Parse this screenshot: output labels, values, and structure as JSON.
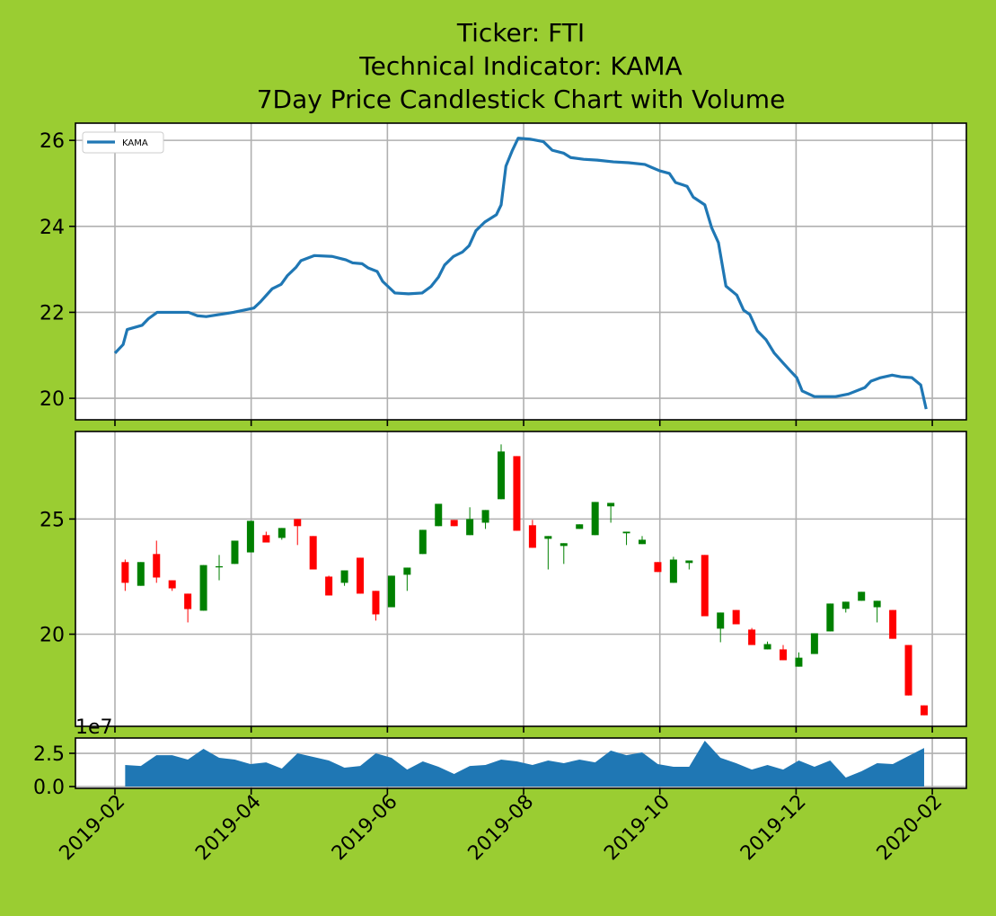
{
  "chart_data": [
    {
      "type": "line",
      "title": [
        "Ticker: FTI",
        "Technical Indicator: KAMA",
        "7Day Price Candlestick Chart with Volume"
      ],
      "x": [
        1.0,
        1.12,
        1.18,
        1.4,
        1.49,
        1.62,
        2.08,
        2.21,
        2.34,
        2.54,
        2.74,
        3.04,
        3.14,
        3.31,
        3.44,
        3.53,
        3.66,
        3.73,
        3.93,
        4.19,
        4.39,
        4.49,
        4.63,
        4.72,
        4.85,
        4.93,
        5.01,
        5.11,
        5.31,
        5.51,
        5.64,
        5.75,
        5.84,
        5.97,
        6.1,
        6.2,
        6.3,
        6.43,
        6.6,
        6.67,
        6.74,
        6.83,
        6.92,
        7.09,
        7.29,
        7.42,
        7.59,
        7.69,
        7.88,
        8.08,
        8.32,
        8.54,
        8.78,
        8.88,
        9.0,
        9.14,
        9.23,
        9.4,
        9.49,
        9.66,
        9.76,
        9.86,
        9.97,
        10.13,
        10.23,
        10.32,
        10.43,
        10.56,
        10.68,
        10.81,
        10.92,
        11.01,
        11.09,
        11.27,
        11.58,
        11.77,
        12.01,
        12.1,
        12.24,
        12.41,
        12.54,
        12.7,
        12.83,
        12.91
      ],
      "series": [
        {
          "name": "KAMA",
          "color": "#1f77b4",
          "values": [
            21.05,
            21.25,
            21.6,
            21.7,
            21.85,
            22.0,
            22.0,
            21.92,
            21.9,
            21.95,
            22.0,
            22.1,
            22.25,
            22.55,
            22.65,
            22.85,
            23.05,
            23.2,
            23.32,
            23.3,
            23.22,
            23.15,
            23.13,
            23.03,
            22.95,
            22.72,
            22.6,
            22.45,
            22.43,
            22.45,
            22.6,
            22.82,
            23.1,
            23.3,
            23.4,
            23.55,
            23.9,
            24.1,
            24.27,
            24.5,
            25.4,
            25.75,
            26.05,
            26.03,
            25.97,
            25.77,
            25.7,
            25.6,
            25.56,
            25.54,
            25.5,
            25.48,
            25.44,
            25.37,
            25.29,
            25.23,
            25.02,
            24.93,
            24.68,
            24.5,
            23.97,
            23.62,
            22.61,
            22.4,
            22.05,
            21.95,
            21.57,
            21.36,
            21.05,
            20.82,
            20.63,
            20.48,
            20.17,
            20.04,
            20.04,
            20.1,
            20.25,
            20.4,
            20.48,
            20.54,
            20.5,
            20.48,
            20.31,
            19.75
          ]
        }
      ],
      "xlim": [
        0.42,
        13.5
      ],
      "xticks": [
        1,
        3,
        5,
        7,
        9,
        11,
        13
      ],
      "ylim": [
        19.5,
        26.4
      ],
      "yticks": [
        20,
        22,
        24,
        26
      ],
      "grid": true,
      "legend": "upper left"
    },
    {
      "type": "candlestick",
      "x": [
        1.15,
        1.38,
        1.61,
        1.84,
        2.07,
        2.3,
        2.53,
        2.76,
        2.99,
        3.22,
        3.45,
        3.68,
        3.91,
        4.14,
        4.37,
        4.6,
        4.83,
        5.06,
        5.29,
        5.52,
        5.75,
        5.98,
        6.21,
        6.44,
        6.67,
        6.9,
        7.13,
        7.36,
        7.59,
        7.82,
        8.05,
        8.28,
        8.51,
        8.74,
        8.97,
        9.2,
        9.43,
        9.66,
        9.89,
        10.12,
        10.35,
        10.58,
        10.81,
        11.04,
        11.27,
        11.5,
        11.73,
        11.96,
        12.19,
        12.42,
        12.65,
        12.88
      ],
      "open": [
        23.13,
        22.1,
        23.48,
        22.34,
        21.76,
        21.02,
        22.9,
        23.05,
        23.55,
        24.3,
        24.18,
        25.0,
        24.26,
        22.5,
        22.23,
        23.32,
        21.88,
        21.17,
        22.58,
        23.48,
        24.69,
        24.96,
        24.3,
        24.84,
        25.86,
        27.73,
        24.73,
        24.14,
        23.83,
        24.57,
        24.3,
        25.55,
        24.38,
        23.91,
        23.13,
        22.23,
        23.09,
        23.44,
        20.24,
        21.05,
        20.2,
        19.34,
        19.34,
        18.59,
        19.14,
        20.12,
        21.1,
        21.45,
        21.17,
        21.05,
        19.53,
        16.91
      ],
      "high": [
        23.24,
        23.13,
        24.06,
        22.34,
        21.76,
        23.0,
        23.44,
        24.06,
        24.92,
        24.45,
        24.61,
        25.0,
        24.26,
        22.54,
        22.77,
        23.32,
        21.88,
        22.54,
        22.89,
        24.53,
        25.66,
        24.96,
        25.51,
        25.39,
        28.24,
        27.73,
        24.96,
        24.26,
        23.95,
        24.77,
        25.74,
        25.7,
        24.45,
        24.26,
        23.13,
        23.36,
        23.2,
        23.44,
        20.94,
        21.05,
        20.27,
        19.68,
        19.53,
        19.21,
        20.04,
        21.33,
        21.41,
        21.84,
        21.45,
        21.05,
        19.53,
        16.91
      ],
      "low": [
        21.88,
        22.1,
        22.23,
        21.88,
        20.51,
        21.02,
        22.34,
        23.05,
        23.55,
        23.98,
        24.1,
        23.87,
        22.81,
        21.68,
        22.1,
        21.76,
        20.59,
        21.17,
        21.88,
        23.48,
        24.69,
        24.69,
        24.3,
        24.57,
        25.86,
        24.49,
        23.75,
        22.81,
        23.05,
        24.57,
        24.3,
        24.84,
        23.87,
        23.91,
        22.7,
        22.23,
        22.81,
        20.78,
        19.65,
        20.43,
        19.53,
        19.34,
        18.87,
        18.59,
        19.14,
        20.12,
        20.94,
        21.45,
        20.51,
        19.8,
        17.34,
        16.48
      ],
      "close": [
        22.23,
        23.13,
        22.46,
        21.99,
        21.09,
        23.0,
        22.95,
        24.06,
        24.92,
        23.98,
        24.61,
        24.69,
        22.81,
        21.68,
        22.77,
        21.76,
        20.86,
        22.54,
        22.89,
        24.53,
        25.66,
        24.69,
        25.0,
        25.39,
        27.93,
        24.49,
        23.75,
        24.26,
        23.95,
        24.77,
        25.74,
        25.7,
        24.45,
        24.1,
        22.7,
        23.24,
        23.2,
        20.78,
        20.94,
        20.43,
        19.53,
        19.57,
        18.87,
        18.98,
        20.04,
        21.33,
        21.41,
        21.84,
        21.45,
        19.8,
        17.34,
        16.48
      ],
      "up_color": "#008000",
      "down_color": "#ff0000",
      "xlim": [
        0.42,
        13.5
      ],
      "xticks": [
        1,
        3,
        5,
        7,
        9,
        11,
        13
      ],
      "ylim": [
        16.0,
        28.8
      ],
      "yticks": [
        20,
        25
      ],
      "grid": true
    },
    {
      "type": "area",
      "x": [
        1.15,
        1.38,
        1.61,
        1.84,
        2.07,
        2.3,
        2.53,
        2.76,
        2.99,
        3.22,
        3.45,
        3.68,
        3.91,
        4.14,
        4.37,
        4.6,
        4.83,
        5.06,
        5.29,
        5.52,
        5.75,
        5.98,
        6.21,
        6.44,
        6.67,
        6.9,
        7.13,
        7.36,
        7.59,
        7.82,
        8.05,
        8.28,
        8.51,
        8.74,
        8.97,
        9.2,
        9.43,
        9.66,
        9.89,
        10.12,
        10.35,
        10.58,
        10.81,
        11.04,
        11.27,
        11.5,
        11.73,
        11.96,
        12.19,
        12.42,
        12.65,
        12.88
      ],
      "values": [
        1.62,
        1.55,
        2.36,
        2.36,
        2.03,
        2.84,
        2.16,
        2.03,
        1.69,
        1.82,
        1.35,
        2.5,
        2.23,
        1.96,
        1.42,
        1.55,
        2.5,
        2.16,
        1.28,
        1.89,
        1.49,
        0.95,
        1.55,
        1.62,
        2.03,
        1.89,
        1.62,
        1.96,
        1.76,
        2.03,
        1.82,
        2.7,
        2.36,
        2.57,
        1.69,
        1.49,
        1.49,
        3.45,
        2.16,
        1.76,
        1.28,
        1.62,
        1.28,
        1.96,
        1.49,
        1.96,
        0.68,
        1.15,
        1.76,
        1.69,
        2.3,
        2.9
      ],
      "color": "#1f77b4",
      "offset_label": "1e7",
      "xlim": [
        0.42,
        13.5
      ],
      "xticks": [
        {
          "value": 1,
          "label": "2019-02"
        },
        {
          "value": 3,
          "label": "2019-04"
        },
        {
          "value": 5,
          "label": "2019-06"
        },
        {
          "value": 7,
          "label": "2019-08"
        },
        {
          "value": 9,
          "label": "2019-10"
        },
        {
          "value": 11,
          "label": "2019-12"
        },
        {
          "value": 13,
          "label": "2020-02"
        }
      ],
      "ylim": [
        -0.135,
        3.65
      ],
      "yticks": [
        {
          "value": 0,
          "label": "0.0"
        },
        2.5
      ],
      "grid": true
    }
  ]
}
